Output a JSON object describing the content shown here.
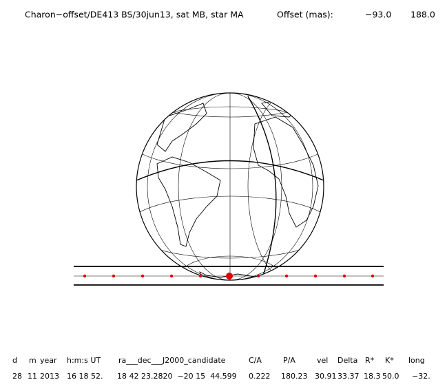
{
  "header": {
    "title": "Charon−offset/DE413 BS/30jun13, sat MB, star MA",
    "offset_label": "Offset (mas):",
    "offset_values": [
      "−93.0",
      "188.0"
    ]
  },
  "table": {
    "headers": [
      "d",
      "m",
      "year",
      "h:m:s UT",
      "ra___dec___J2000_candidate",
      "C/A",
      "P/A",
      "vel",
      "Delta",
      "R*",
      "K*",
      "long"
    ],
    "rows": [
      [
        "28",
        "11",
        "2013",
        "16 18 52.",
        "18 42 23.2820  −20 15  44.599",
        "0.222",
        "180.23",
        "30.91",
        "33.37",
        "18.3",
        "50.0",
        "−32."
      ]
    ]
  }
}
